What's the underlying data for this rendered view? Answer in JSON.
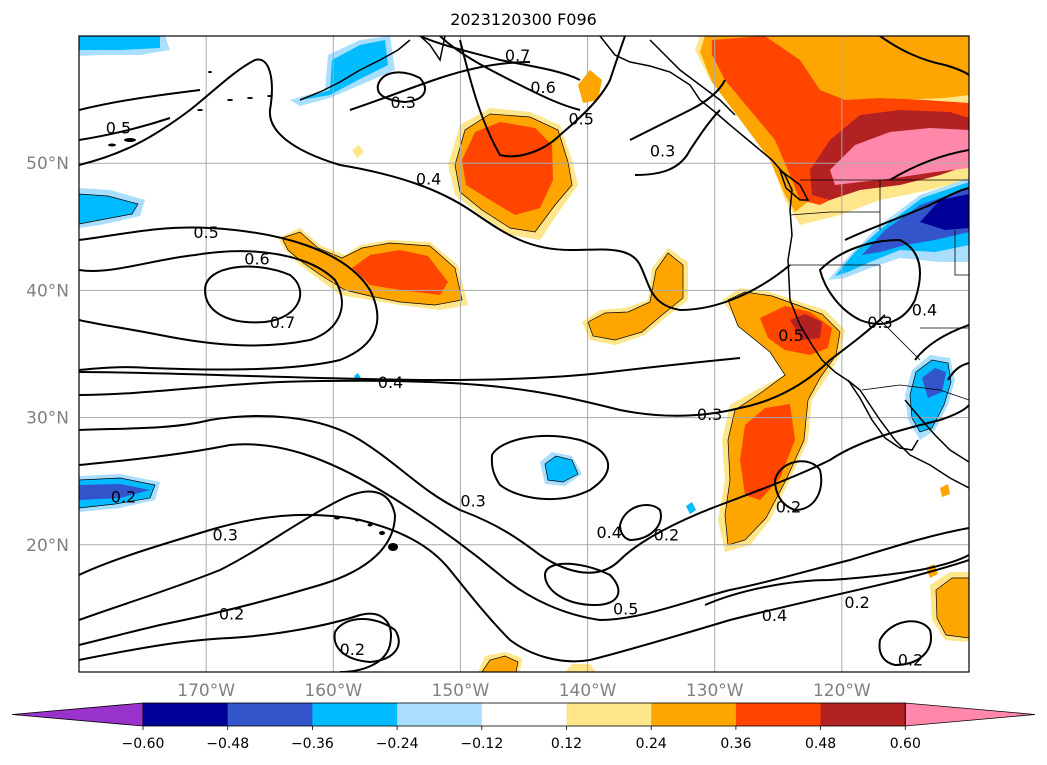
{
  "title": "2023120300 F096",
  "map": {
    "lat_labels": [
      "50°N",
      "40°N",
      "30°N",
      "20°N"
    ],
    "lon_labels": [
      "170°W",
      "160°W",
      "150°W",
      "140°W",
      "130°W",
      "120°W"
    ],
    "lat_values": [
      50,
      40,
      30,
      20
    ],
    "lon_values": [
      -170,
      -160,
      -150,
      -140,
      -130,
      -120
    ],
    "lat_range": [
      10,
      60
    ],
    "lon_range": [
      -180,
      -110
    ],
    "contour_labels": [
      {
        "text": "0.7",
        "lon": -145.5,
        "lat": 58.5
      },
      {
        "text": "0.6",
        "lon": -143.5,
        "lat": 56.0
      },
      {
        "text": "0.5",
        "lon": -140.5,
        "lat": 53.5
      },
      {
        "text": "0.3",
        "lon": -154.5,
        "lat": 54.8
      },
      {
        "text": "0.5",
        "lon": -176.9,
        "lat": 52.8
      },
      {
        "text": "0.3",
        "lon": -134.1,
        "lat": 51.0
      },
      {
        "text": "0.4",
        "lon": -152.5,
        "lat": 48.8
      },
      {
        "text": "0.5",
        "lon": -170.0,
        "lat": 44.6
      },
      {
        "text": "0.6",
        "lon": -166.0,
        "lat": 42.5
      },
      {
        "text": "0.7",
        "lon": -164.0,
        "lat": 37.5
      },
      {
        "text": "0.4",
        "lon": -113.5,
        "lat": 38.5
      },
      {
        "text": "0.3",
        "lon": -117.0,
        "lat": 37.5
      },
      {
        "text": "0.5",
        "lon": -124.0,
        "lat": 36.5
      },
      {
        "text": "0.4",
        "lon": -155.5,
        "lat": 32.8
      },
      {
        "text": "0.3",
        "lon": -130.4,
        "lat": 30.3
      },
      {
        "text": "0.2",
        "lon": -176.5,
        "lat": 23.8
      },
      {
        "text": "0.3",
        "lon": -149.0,
        "lat": 23.5
      },
      {
        "text": "0.3",
        "lon": -168.5,
        "lat": 20.8
      },
      {
        "text": "0.4",
        "lon": -138.3,
        "lat": 21.0
      },
      {
        "text": "0.2",
        "lon": -133.8,
        "lat": 20.8
      },
      {
        "text": "0.2",
        "lon": -124.2,
        "lat": 23.0
      },
      {
        "text": "0.5",
        "lon": -137.0,
        "lat": 15.0
      },
      {
        "text": "0.2",
        "lon": -168.0,
        "lat": 14.6
      },
      {
        "text": "0.4",
        "lon": -125.3,
        "lat": 14.5
      },
      {
        "text": "0.2",
        "lon": -118.8,
        "lat": 15.5
      },
      {
        "text": "0.2",
        "lon": -158.5,
        "lat": 11.8
      },
      {
        "text": "0.2",
        "lon": -114.6,
        "lat": 11.0
      }
    ]
  },
  "colorbar": {
    "tick_labels": [
      "−0.60",
      "−0.48",
      "−0.36",
      "−0.24",
      "−0.12",
      "0.12",
      "0.24",
      "0.36",
      "0.48",
      "0.60"
    ],
    "levels": [
      -0.6,
      -0.48,
      -0.36,
      -0.24,
      -0.12,
      0.12,
      0.24,
      0.36,
      0.48,
      0.6
    ],
    "under_color": "#9933cc",
    "colors": [
      "#000099",
      "#3355cc",
      "#00bbff",
      "#aadeff",
      "#ffffff",
      "#ffe68a",
      "#ffa500",
      "#ff4500",
      "#b22222"
    ],
    "over_color": "#ff88aa"
  },
  "colors": {
    "pink": "#ff88aa",
    "darkred": "#b22222",
    "red": "#ff4500",
    "orange": "#ffa500",
    "lightyellow": "#ffe68a",
    "lightblue": "#aadeff",
    "skyblue": "#00bbff",
    "medblue": "#3355cc",
    "navy": "#000099",
    "grid": "#aaaaaa",
    "tick_text": "#808080"
  }
}
